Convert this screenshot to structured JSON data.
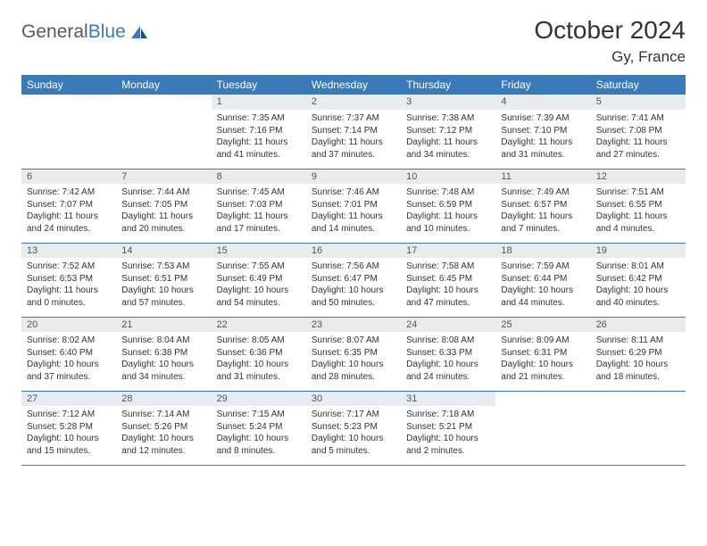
{
  "brand": {
    "name_gray": "General",
    "name_blue": "Blue"
  },
  "title": "October 2024",
  "location": "Gy, France",
  "colors": {
    "header_bg": "#3a7ab8",
    "daynum_bg": "#e8ecef",
    "border": "#3a7ab8",
    "text": "#333333"
  },
  "day_labels": [
    "Sunday",
    "Monday",
    "Tuesday",
    "Wednesday",
    "Thursday",
    "Friday",
    "Saturday"
  ],
  "weeks": [
    [
      null,
      null,
      {
        "n": "1",
        "sr": "Sunrise: 7:35 AM",
        "ss": "Sunset: 7:16 PM",
        "d1": "Daylight: 11 hours",
        "d2": "and 41 minutes."
      },
      {
        "n": "2",
        "sr": "Sunrise: 7:37 AM",
        "ss": "Sunset: 7:14 PM",
        "d1": "Daylight: 11 hours",
        "d2": "and 37 minutes."
      },
      {
        "n": "3",
        "sr": "Sunrise: 7:38 AM",
        "ss": "Sunset: 7:12 PM",
        "d1": "Daylight: 11 hours",
        "d2": "and 34 minutes."
      },
      {
        "n": "4",
        "sr": "Sunrise: 7:39 AM",
        "ss": "Sunset: 7:10 PM",
        "d1": "Daylight: 11 hours",
        "d2": "and 31 minutes."
      },
      {
        "n": "5",
        "sr": "Sunrise: 7:41 AM",
        "ss": "Sunset: 7:08 PM",
        "d1": "Daylight: 11 hours",
        "d2": "and 27 minutes."
      }
    ],
    [
      {
        "n": "6",
        "sr": "Sunrise: 7:42 AM",
        "ss": "Sunset: 7:07 PM",
        "d1": "Daylight: 11 hours",
        "d2": "and 24 minutes."
      },
      {
        "n": "7",
        "sr": "Sunrise: 7:44 AM",
        "ss": "Sunset: 7:05 PM",
        "d1": "Daylight: 11 hours",
        "d2": "and 20 minutes."
      },
      {
        "n": "8",
        "sr": "Sunrise: 7:45 AM",
        "ss": "Sunset: 7:03 PM",
        "d1": "Daylight: 11 hours",
        "d2": "and 17 minutes."
      },
      {
        "n": "9",
        "sr": "Sunrise: 7:46 AM",
        "ss": "Sunset: 7:01 PM",
        "d1": "Daylight: 11 hours",
        "d2": "and 14 minutes."
      },
      {
        "n": "10",
        "sr": "Sunrise: 7:48 AM",
        "ss": "Sunset: 6:59 PM",
        "d1": "Daylight: 11 hours",
        "d2": "and 10 minutes."
      },
      {
        "n": "11",
        "sr": "Sunrise: 7:49 AM",
        "ss": "Sunset: 6:57 PM",
        "d1": "Daylight: 11 hours",
        "d2": "and 7 minutes."
      },
      {
        "n": "12",
        "sr": "Sunrise: 7:51 AM",
        "ss": "Sunset: 6:55 PM",
        "d1": "Daylight: 11 hours",
        "d2": "and 4 minutes."
      }
    ],
    [
      {
        "n": "13",
        "sr": "Sunrise: 7:52 AM",
        "ss": "Sunset: 6:53 PM",
        "d1": "Daylight: 11 hours",
        "d2": "and 0 minutes."
      },
      {
        "n": "14",
        "sr": "Sunrise: 7:53 AM",
        "ss": "Sunset: 6:51 PM",
        "d1": "Daylight: 10 hours",
        "d2": "and 57 minutes."
      },
      {
        "n": "15",
        "sr": "Sunrise: 7:55 AM",
        "ss": "Sunset: 6:49 PM",
        "d1": "Daylight: 10 hours",
        "d2": "and 54 minutes."
      },
      {
        "n": "16",
        "sr": "Sunrise: 7:56 AM",
        "ss": "Sunset: 6:47 PM",
        "d1": "Daylight: 10 hours",
        "d2": "and 50 minutes."
      },
      {
        "n": "17",
        "sr": "Sunrise: 7:58 AM",
        "ss": "Sunset: 6:45 PM",
        "d1": "Daylight: 10 hours",
        "d2": "and 47 minutes."
      },
      {
        "n": "18",
        "sr": "Sunrise: 7:59 AM",
        "ss": "Sunset: 6:44 PM",
        "d1": "Daylight: 10 hours",
        "d2": "and 44 minutes."
      },
      {
        "n": "19",
        "sr": "Sunrise: 8:01 AM",
        "ss": "Sunset: 6:42 PM",
        "d1": "Daylight: 10 hours",
        "d2": "and 40 minutes."
      }
    ],
    [
      {
        "n": "20",
        "sr": "Sunrise: 8:02 AM",
        "ss": "Sunset: 6:40 PM",
        "d1": "Daylight: 10 hours",
        "d2": "and 37 minutes."
      },
      {
        "n": "21",
        "sr": "Sunrise: 8:04 AM",
        "ss": "Sunset: 6:38 PM",
        "d1": "Daylight: 10 hours",
        "d2": "and 34 minutes."
      },
      {
        "n": "22",
        "sr": "Sunrise: 8:05 AM",
        "ss": "Sunset: 6:36 PM",
        "d1": "Daylight: 10 hours",
        "d2": "and 31 minutes."
      },
      {
        "n": "23",
        "sr": "Sunrise: 8:07 AM",
        "ss": "Sunset: 6:35 PM",
        "d1": "Daylight: 10 hours",
        "d2": "and 28 minutes."
      },
      {
        "n": "24",
        "sr": "Sunrise: 8:08 AM",
        "ss": "Sunset: 6:33 PM",
        "d1": "Daylight: 10 hours",
        "d2": "and 24 minutes."
      },
      {
        "n": "25",
        "sr": "Sunrise: 8:09 AM",
        "ss": "Sunset: 6:31 PM",
        "d1": "Daylight: 10 hours",
        "d2": "and 21 minutes."
      },
      {
        "n": "26",
        "sr": "Sunrise: 8:11 AM",
        "ss": "Sunset: 6:29 PM",
        "d1": "Daylight: 10 hours",
        "d2": "and 18 minutes."
      }
    ],
    [
      {
        "n": "27",
        "sr": "Sunrise: 7:12 AM",
        "ss": "Sunset: 5:28 PM",
        "d1": "Daylight: 10 hours",
        "d2": "and 15 minutes."
      },
      {
        "n": "28",
        "sr": "Sunrise: 7:14 AM",
        "ss": "Sunset: 5:26 PM",
        "d1": "Daylight: 10 hours",
        "d2": "and 12 minutes."
      },
      {
        "n": "29",
        "sr": "Sunrise: 7:15 AM",
        "ss": "Sunset: 5:24 PM",
        "d1": "Daylight: 10 hours",
        "d2": "and 8 minutes."
      },
      {
        "n": "30",
        "sr": "Sunrise: 7:17 AM",
        "ss": "Sunset: 5:23 PM",
        "d1": "Daylight: 10 hours",
        "d2": "and 5 minutes."
      },
      {
        "n": "31",
        "sr": "Sunrise: 7:18 AM",
        "ss": "Sunset: 5:21 PM",
        "d1": "Daylight: 10 hours",
        "d2": "and 2 minutes."
      },
      null,
      null
    ]
  ]
}
